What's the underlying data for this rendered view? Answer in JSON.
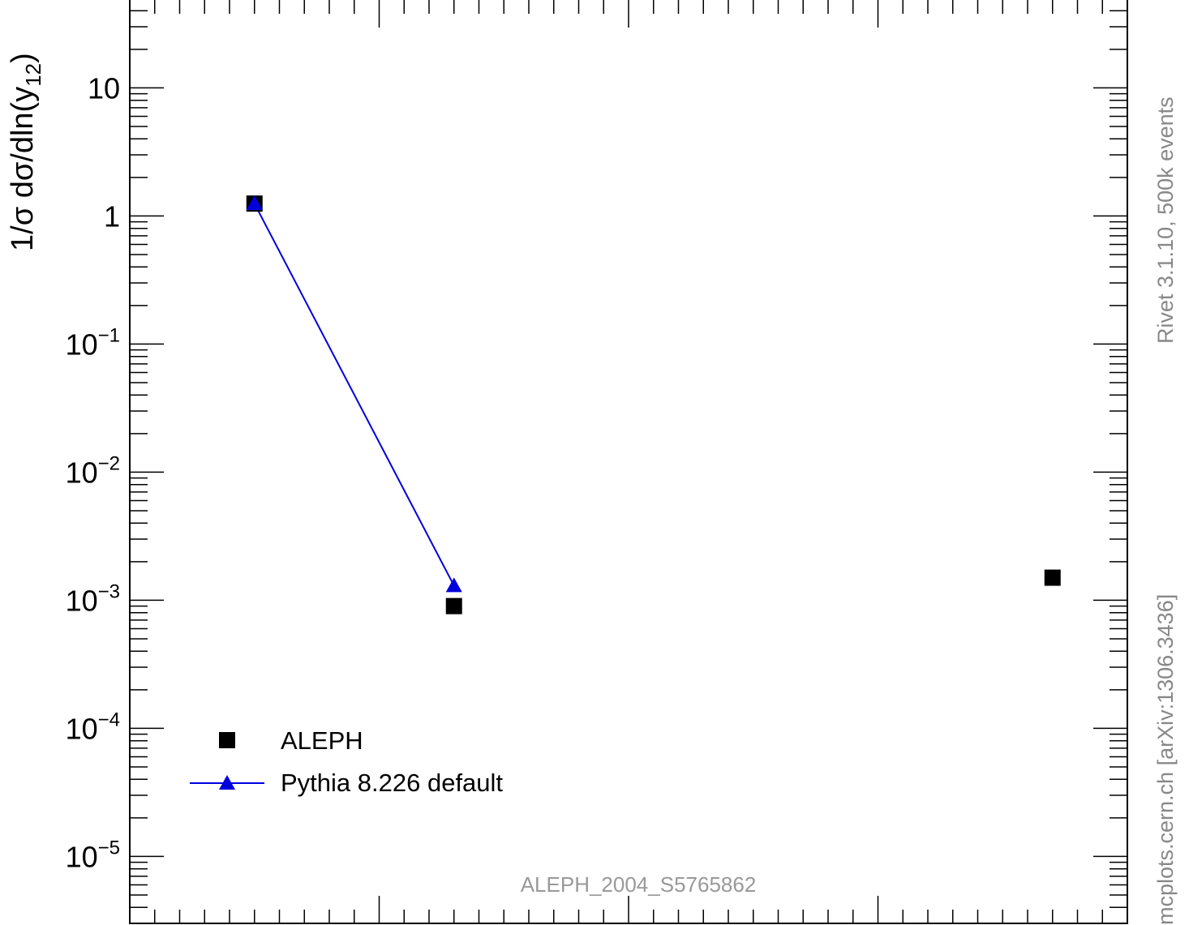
{
  "chart_data": {
    "type": "scatter",
    "ylabel_main": "1/σ  dσ/dln(y",
    "ylabel_sub": "12",
    "ylabel_close": ")",
    "yscale": "log",
    "ylim": [
      3e-06,
      50
    ],
    "y_ticks": [
      {
        "value": 10,
        "base": "10",
        "exp": ""
      },
      {
        "value": 1,
        "base": "1",
        "exp": ""
      },
      {
        "value": 0.1,
        "base": "10",
        "exp": "−1"
      },
      {
        "value": 0.01,
        "base": "10",
        "exp": "−2"
      },
      {
        "value": 0.001,
        "base": "10",
        "exp": "−3"
      },
      {
        "value": 0.0001,
        "base": "10",
        "exp": "−4"
      },
      {
        "value": 1e-05,
        "base": "10",
        "exp": "−5"
      }
    ],
    "xlim": [
      0,
      4
    ],
    "x_major_ticks": [
      0,
      1,
      2,
      3,
      4
    ],
    "grid": false,
    "legend_position": "bottom-left",
    "series": [
      {
        "name": "ALEPH",
        "marker": "square",
        "color": "#000000",
        "line": false,
        "points": [
          {
            "x": 0.5,
            "y": 1.25
          },
          {
            "x": 1.3,
            "y": 0.0009
          },
          {
            "x": 3.7,
            "y": 0.0015
          }
        ]
      },
      {
        "name": "Pythia 8.226 default",
        "marker": "triangle",
        "color": "#0000dd",
        "line": true,
        "points": [
          {
            "x": 0.5,
            "y": 1.25
          },
          {
            "x": 1.3,
            "y": 0.0013
          }
        ]
      }
    ]
  },
  "side": {
    "rivet": "Rivet 3.1.10,  500k events",
    "mcplots": "mcplots.cern.ch [arXiv:1306.3436]"
  },
  "watermark": "ALEPH_2004_S5765862"
}
